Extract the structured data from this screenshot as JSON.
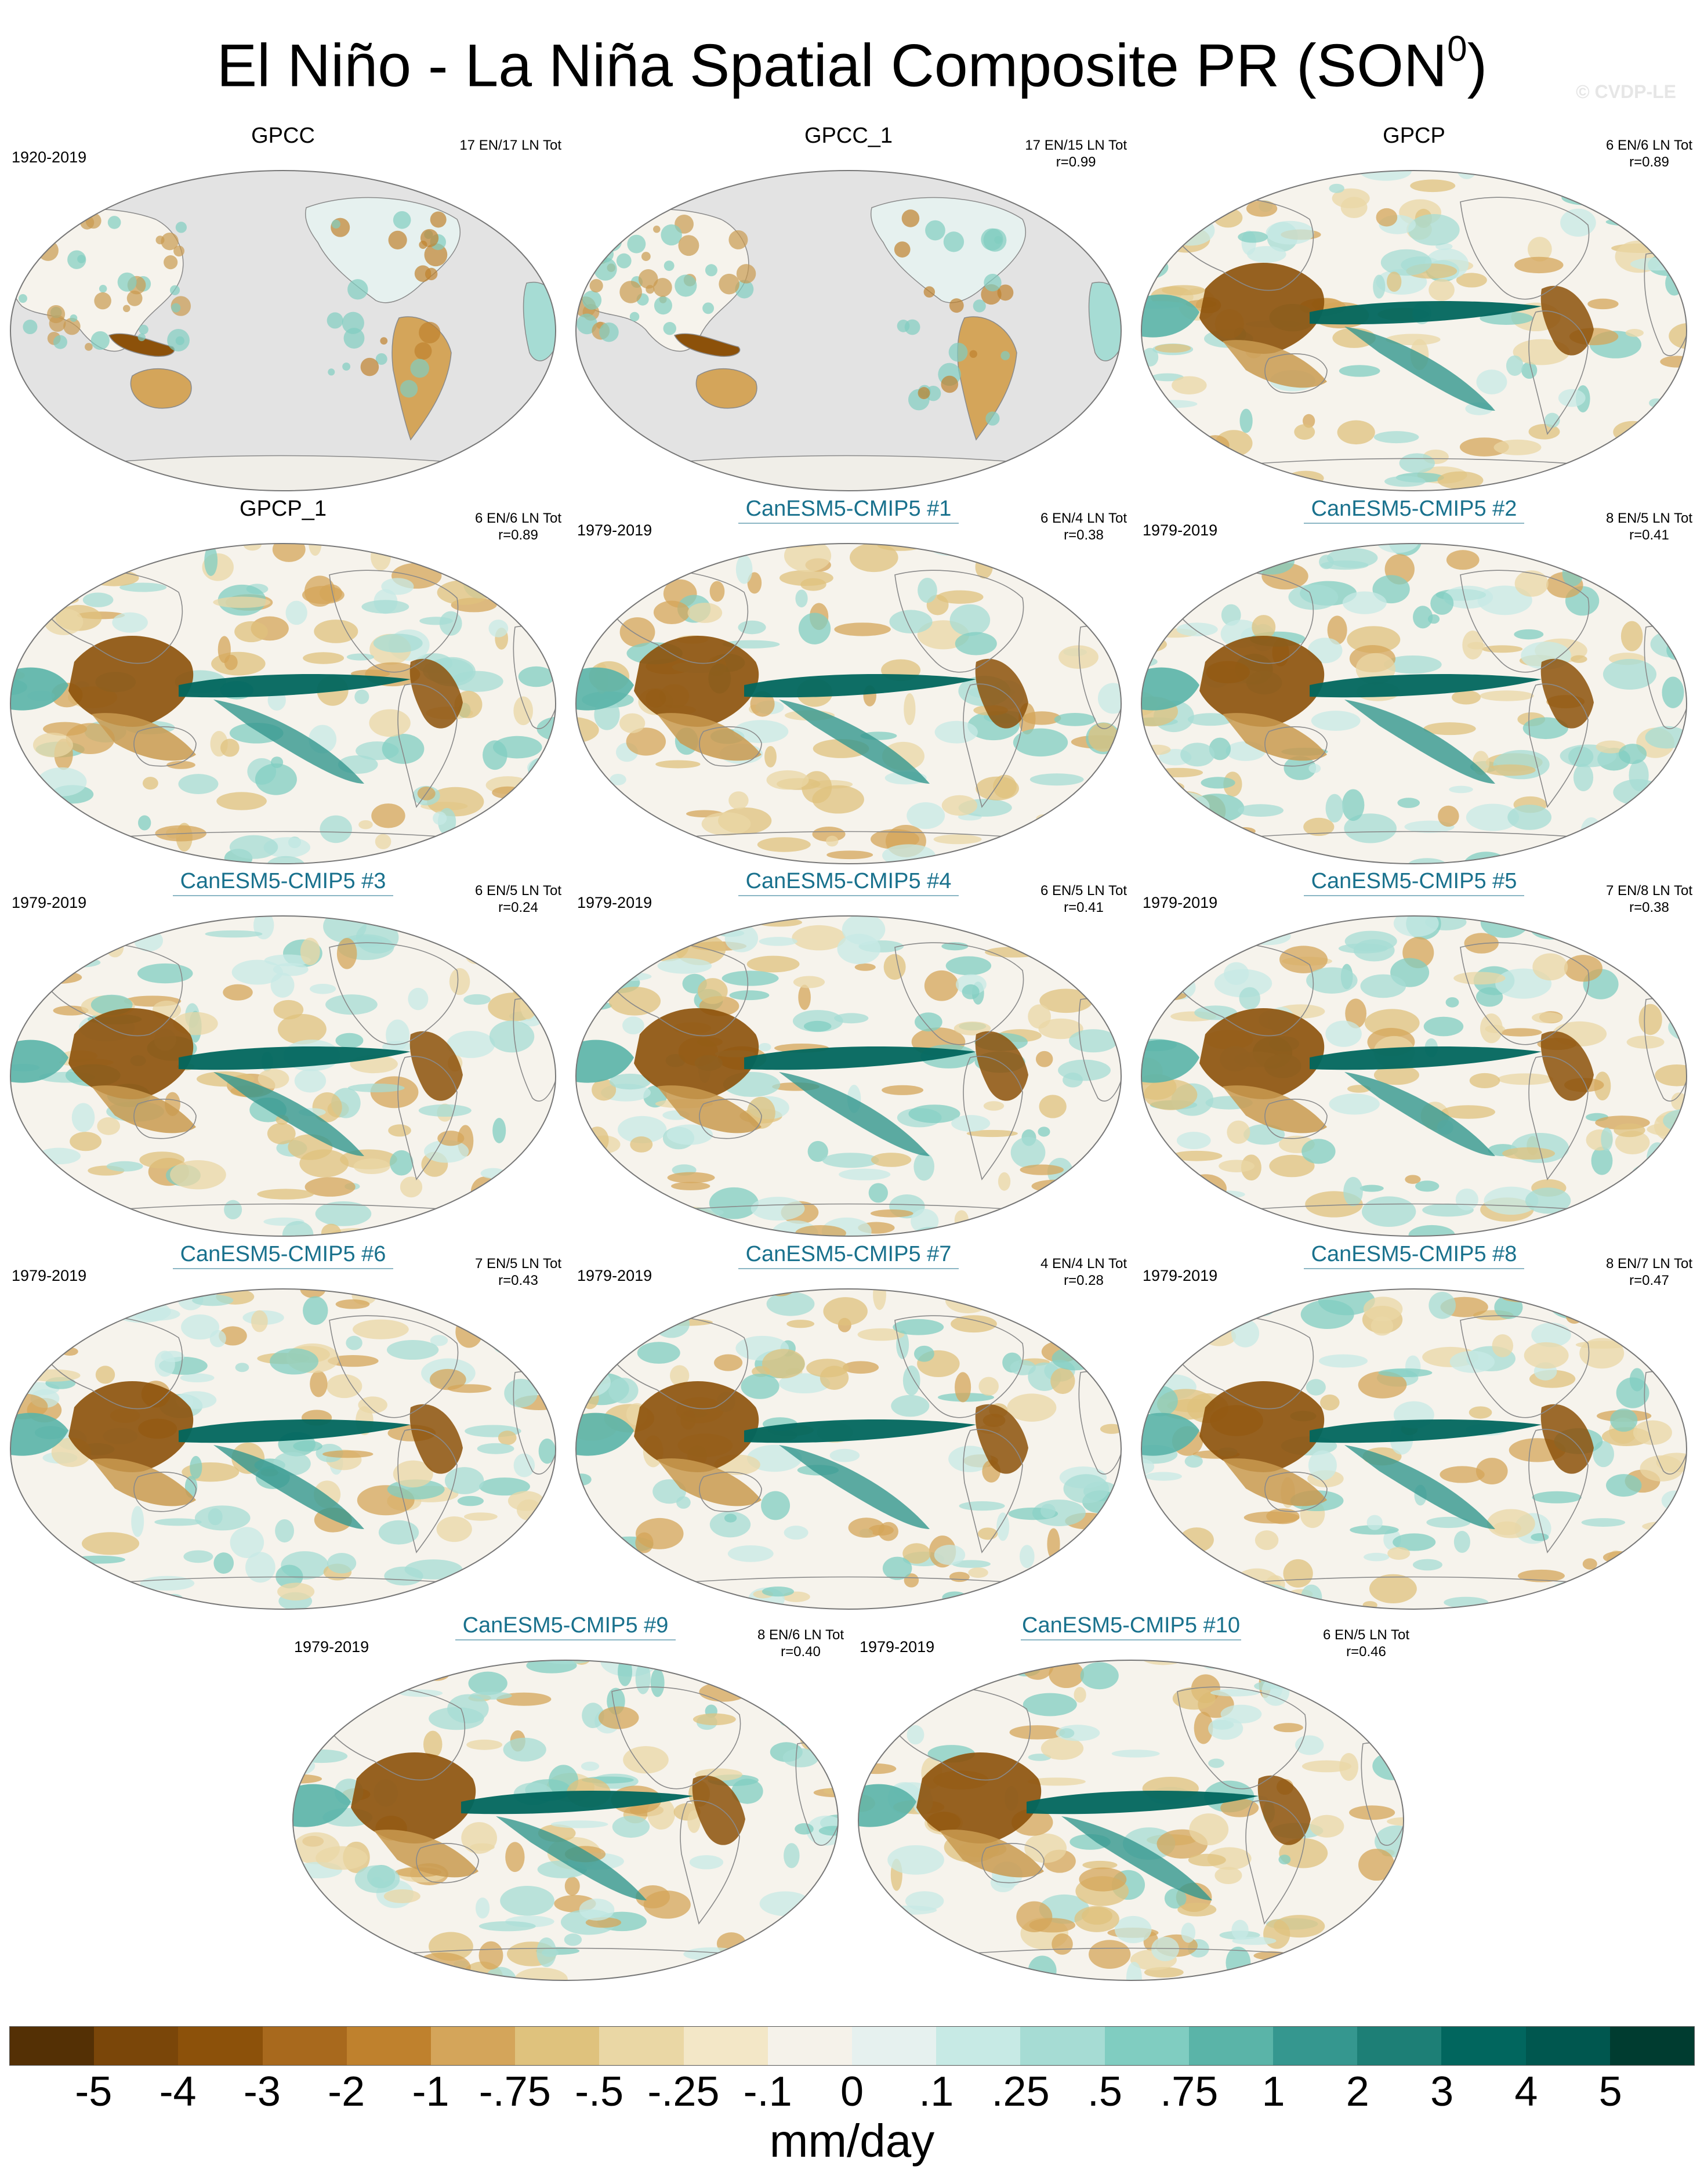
{
  "figure": {
    "title": "El Niño - La Niña Spatial Composite PR (SON",
    "title_superscript": "0",
    "title_close": ")",
    "credit": "© CVDP-LE"
  },
  "panels": [
    {
      "title": "GPCC",
      "kind": "obs",
      "period": "1920-2019",
      "stats": "17 EN/17 LN Tot",
      "r": "",
      "map_style": "land"
    },
    {
      "title": "GPCC_1",
      "kind": "obs",
      "period": "",
      "stats": "17 EN/15 LN Tot",
      "r": "r=0.99",
      "map_style": "land"
    },
    {
      "title": "GPCP",
      "kind": "obs",
      "period": "",
      "stats": "6 EN/6 LN Tot",
      "r": "r=0.89",
      "map_style": "global"
    },
    {
      "title": "GPCP_1",
      "kind": "obs",
      "period": "",
      "stats": "6 EN/6 LN Tot",
      "r": "r=0.89",
      "map_style": "global"
    },
    {
      "title": "CanESM5-CMIP5 #1",
      "kind": "model",
      "period": "1979-2019",
      "stats": "6 EN/4 LN Tot",
      "r": "r=0.38",
      "map_style": "global"
    },
    {
      "title": "CanESM5-CMIP5 #2",
      "kind": "model",
      "period": "1979-2019",
      "stats": "8 EN/5 LN Tot",
      "r": "r=0.41",
      "map_style": "global"
    },
    {
      "title": "CanESM5-CMIP5 #3",
      "kind": "model",
      "period": "1979-2019",
      "stats": "6 EN/5 LN Tot",
      "r": "r=0.24",
      "map_style": "global"
    },
    {
      "title": "CanESM5-CMIP5 #4",
      "kind": "model",
      "period": "1979-2019",
      "stats": "6 EN/5 LN Tot",
      "r": "r=0.41",
      "map_style": "global"
    },
    {
      "title": "CanESM5-CMIP5 #5",
      "kind": "model",
      "period": "1979-2019",
      "stats": "7 EN/8 LN Tot",
      "r": "r=0.38",
      "map_style": "global"
    },
    {
      "title": "CanESM5-CMIP5 #6",
      "kind": "model",
      "period": "1979-2019",
      "stats": "7 EN/5 LN Tot",
      "r": "r=0.43",
      "map_style": "global"
    },
    {
      "title": "CanESM5-CMIP5 #7",
      "kind": "model",
      "period": "1979-2019",
      "stats": "4 EN/4 LN Tot",
      "r": "r=0.28",
      "map_style": "global"
    },
    {
      "title": "CanESM5-CMIP5 #8",
      "kind": "model",
      "period": "1979-2019",
      "stats": "8 EN/7 LN Tot",
      "r": "r=0.47",
      "map_style": "global"
    },
    {
      "title": "CanESM5-CMIP5 #9",
      "kind": "model",
      "period": "1979-2019",
      "stats": "8 EN/6 LN Tot",
      "r": "r=0.40",
      "map_style": "global"
    },
    {
      "title": "CanESM5-CMIP5 #10",
      "kind": "model",
      "period": "1979-2019",
      "stats": "6 EN/5 LN Tot",
      "r": "r=0.46",
      "map_style": "global"
    }
  ],
  "colorbar": {
    "colors": [
      "#543005",
      "#7a4609",
      "#8c510a",
      "#a8691d",
      "#bf812d",
      "#d4a55a",
      "#dfc27d",
      "#ead7a5",
      "#f3e7c7",
      "#f5f2ea",
      "#e6f1ef",
      "#c7eae5",
      "#a6dcd4",
      "#80cdc1",
      "#5ab4a8",
      "#35978f",
      "#1d7f76",
      "#01665e",
      "#00574f",
      "#003c30"
    ],
    "labels": [
      "-5",
      "-4",
      "-3",
      "-2",
      "-1",
      "-.75",
      "-.5",
      "-.25",
      "-.1",
      "0",
      ".1",
      ".25",
      ".5",
      ".75",
      "1",
      "2",
      "3",
      "4",
      "5"
    ],
    "units": "mm/day"
  },
  "map_colors": {
    "missing": "#e3e3e3",
    "coast": "#8a8a8a",
    "dry_strong": "#8c510a",
    "dry": "#c99a50",
    "wet_strong": "#01665e",
    "wet": "#5ab4a8",
    "neutral": "#f6f3ec"
  }
}
